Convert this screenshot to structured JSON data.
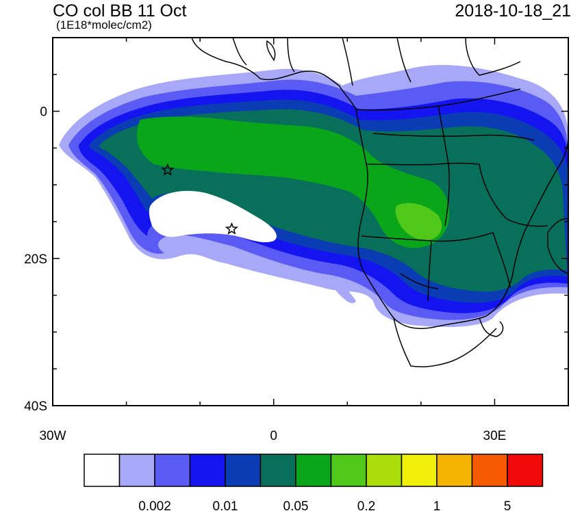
{
  "header": {
    "title": "CO col BB 11 Oct",
    "units": "(1E18*molec/cm2)",
    "timestamp": "2018-10-18_21"
  },
  "map": {
    "lon_range": [
      -30,
      40
    ],
    "lat_range": [
      -40,
      10
    ],
    "y_axis": {
      "ticks": [
        {
          "lat": 0,
          "label": "0"
        },
        {
          "lat": -20,
          "label": "20S"
        },
        {
          "lat": -40,
          "label": "40S"
        }
      ]
    },
    "x_axis": {
      "ticks": [
        {
          "lon": -30,
          "label": "30W"
        },
        {
          "lon": 0,
          "label": "0"
        },
        {
          "lon": 30,
          "label": "30E"
        }
      ]
    },
    "markers": [
      {
        "name": "star-marker",
        "lon": -14.4,
        "lat": -8.0
      },
      {
        "name": "star-marker",
        "lon": -5.7,
        "lat": -16.0
      }
    ]
  },
  "colorbar": {
    "colors": [
      "#ffffff",
      "#a8a8f8",
      "#5a5af5",
      "#1414f0",
      "#0a3cb4",
      "#08705a",
      "#0aa61a",
      "#50c81a",
      "#aadd0a",
      "#f0f00a",
      "#f5b400",
      "#f55a00",
      "#f00a0a"
    ],
    "labels": [
      {
        "after_box": 2,
        "text": "0.002"
      },
      {
        "after_box": 4,
        "text": "0.01"
      },
      {
        "after_box": 6,
        "text": "0.05"
      },
      {
        "after_box": 8,
        "text": "0.2"
      },
      {
        "after_box": 10,
        "text": "1"
      },
      {
        "after_box": 12,
        "text": "5"
      }
    ]
  }
}
